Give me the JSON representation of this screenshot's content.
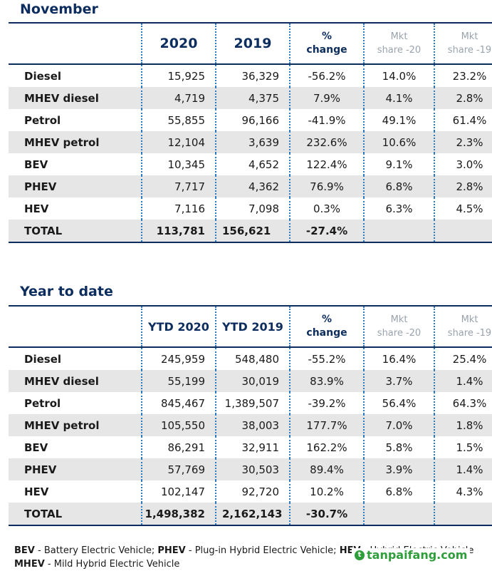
{
  "november": {
    "title": "November",
    "headers": {
      "col1": "2020",
      "col2": "2019",
      "pct_line1": "%",
      "pct_line2": "change",
      "mkt20_line1": "Mkt",
      "mkt20_line2": "share -20",
      "mkt19_line1": "Mkt",
      "mkt19_line2": "share -19"
    },
    "rows": [
      {
        "label": "Diesel",
        "v2020": "15,925",
        "v2019": "36,329",
        "change": "-56.2%",
        "share20": "14.0%",
        "share19": "23.2%"
      },
      {
        "label": "MHEV diesel",
        "v2020": "4,719",
        "v2019": "4,375",
        "change": "7.9%",
        "share20": "4.1%",
        "share19": "2.8%"
      },
      {
        "label": "Petrol",
        "v2020": "55,855",
        "v2019": "96,166",
        "change": "-41.9%",
        "share20": "49.1%",
        "share19": "61.4%"
      },
      {
        "label": "MHEV petrol",
        "v2020": "12,104",
        "v2019": "3,639",
        "change": "232.6%",
        "share20": "10.6%",
        "share19": "2.3%"
      },
      {
        "label": "BEV",
        "v2020": "10,345",
        "v2019": "4,652",
        "change": "122.4%",
        "share20": "9.1%",
        "share19": "3.0%"
      },
      {
        "label": "PHEV",
        "v2020": "7,717",
        "v2019": "4,362",
        "change": "76.9%",
        "share20": "6.8%",
        "share19": "2.8%"
      },
      {
        "label": "HEV",
        "v2020": "7,116",
        "v2019": "7,098",
        "change": "0.3%",
        "share20": "6.3%",
        "share19": "4.5%"
      }
    ],
    "total": {
      "label": "TOTAL",
      "v2020": "113,781",
      "v2019": "156,621",
      "change": "-27.4%"
    }
  },
  "ytd": {
    "title": "Year to date",
    "headers": {
      "col1": "YTD 2020",
      "col2": "YTD 2019",
      "pct_line1": "%",
      "pct_line2": "change",
      "mkt20_line1": "Mkt",
      "mkt20_line2": "share -20",
      "mkt19_line1": "Mkt",
      "mkt19_line2": "share -19"
    },
    "rows": [
      {
        "label": "Diesel",
        "v2020": "245,959",
        "v2019": "548,480",
        "change": "-55.2%",
        "share20": "16.4%",
        "share19": "25.4%"
      },
      {
        "label": "MHEV diesel",
        "v2020": "55,199",
        "v2019": "30,019",
        "change": "83.9%",
        "share20": "3.7%",
        "share19": "1.4%"
      },
      {
        "label": "Petrol",
        "v2020": "845,467",
        "v2019": "1,389,507",
        "change": "-39.2%",
        "share20": "56.4%",
        "share19": "64.3%"
      },
      {
        "label": "MHEV petrol",
        "v2020": "105,550",
        "v2019": "38,003",
        "change": "177.7%",
        "share20": "7.0%",
        "share19": "1.8%"
      },
      {
        "label": "BEV",
        "v2020": "86,291",
        "v2019": "32,911",
        "change": "162.2%",
        "share20": "5.8%",
        "share19": "1.5%"
      },
      {
        "label": "PHEV",
        "v2020": "57,769",
        "v2019": "30,503",
        "change": "89.4%",
        "share20": "3.9%",
        "share19": "1.4%"
      },
      {
        "label": "HEV",
        "v2020": "102,147",
        "v2019": "92,720",
        "change": "10.2%",
        "share20": "6.8%",
        "share19": "4.3%"
      }
    ],
    "total": {
      "label": "TOTAL",
      "v2020": "1,498,382",
      "v2019": "2,162,143",
      "change": "-30.7%"
    }
  },
  "footer": {
    "line1": [
      {
        "abbr": "BEV",
        "desc": " - Battery Electric Vehicle; "
      },
      {
        "abbr": "PHEV",
        "desc": " - Plug-in Hybrid Electric Vehicle; "
      },
      {
        "abbr": "HEV",
        "desc": " - Hybrid Electric Vehicle"
      }
    ],
    "line2": [
      {
        "abbr": "MHEV",
        "desc": " - Mild Hybrid Electric Vehicle"
      }
    ]
  },
  "watermark": {
    "mark": "t",
    "text": "tanpaifang.com",
    "color": "#2e9e3a"
  }
}
